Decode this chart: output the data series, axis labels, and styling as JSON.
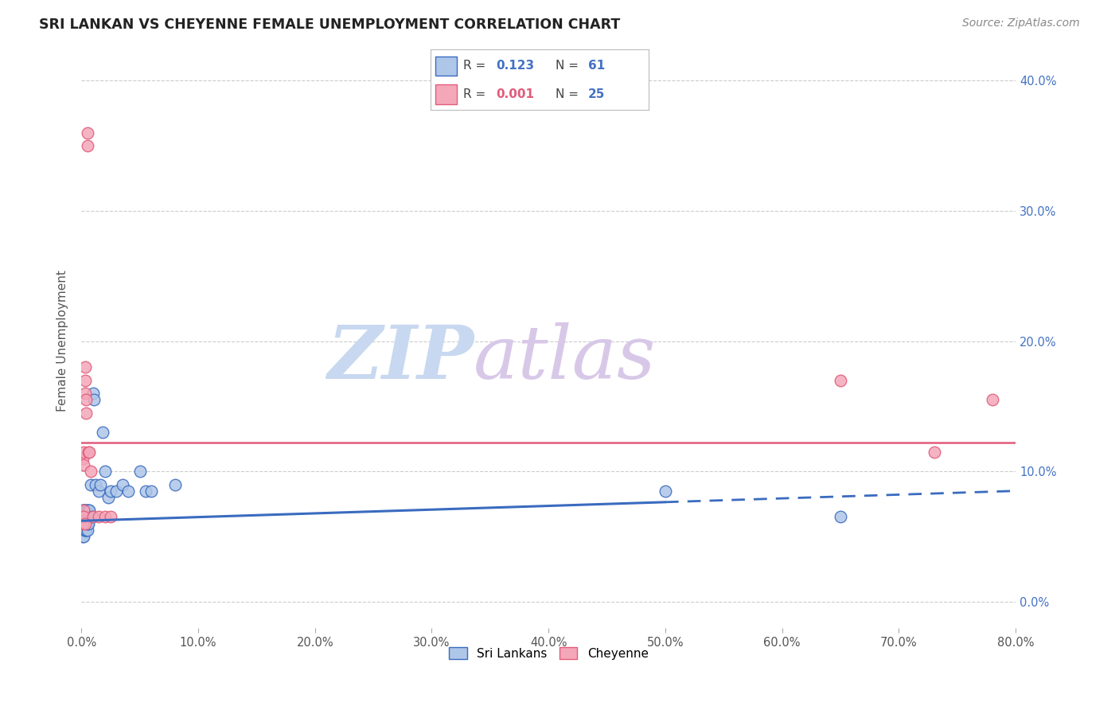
{
  "title": "SRI LANKAN VS CHEYENNE FEMALE UNEMPLOYMENT CORRELATION CHART",
  "source": "Source: ZipAtlas.com",
  "ylabel": "Female Unemployment",
  "xlim": [
    0.0,
    0.8
  ],
  "ylim": [
    -0.02,
    0.42
  ],
  "sri_lankan_R": 0.123,
  "sri_lankan_N": 61,
  "cheyenne_R": 0.001,
  "cheyenne_N": 25,
  "sri_lankan_color": "#aec6e8",
  "cheyenne_color": "#f4a7b9",
  "sri_lankan_line_color": "#3a6bbf",
  "cheyenne_line_color": "#e05c7a",
  "watermark_zip_color": "#c8d8f0",
  "watermark_atlas_color": "#d8c8e8",
  "background_color": "#ffffff",
  "sri_lankans_x": [
    0.001,
    0.001,
    0.001,
    0.001,
    0.001,
    0.001,
    0.002,
    0.002,
    0.002,
    0.002,
    0.002,
    0.002,
    0.002,
    0.002,
    0.002,
    0.003,
    0.003,
    0.003,
    0.003,
    0.003,
    0.003,
    0.003,
    0.003,
    0.003,
    0.003,
    0.004,
    0.004,
    0.004,
    0.004,
    0.004,
    0.004,
    0.005,
    0.005,
    0.005,
    0.005,
    0.005,
    0.006,
    0.006,
    0.006,
    0.007,
    0.007,
    0.008,
    0.009,
    0.01,
    0.011,
    0.012,
    0.015,
    0.016,
    0.018,
    0.02,
    0.023,
    0.025,
    0.03,
    0.035,
    0.04,
    0.05,
    0.055,
    0.06,
    0.08,
    0.5,
    0.65
  ],
  "sri_lankans_y": [
    0.06,
    0.06,
    0.065,
    0.07,
    0.05,
    0.055,
    0.06,
    0.065,
    0.07,
    0.055,
    0.05,
    0.06,
    0.07,
    0.065,
    0.06,
    0.06,
    0.065,
    0.07,
    0.055,
    0.06,
    0.065,
    0.07,
    0.06,
    0.055,
    0.065,
    0.06,
    0.065,
    0.055,
    0.07,
    0.065,
    0.06,
    0.06,
    0.07,
    0.065,
    0.055,
    0.06,
    0.07,
    0.065,
    0.06,
    0.065,
    0.07,
    0.09,
    0.065,
    0.16,
    0.155,
    0.09,
    0.085,
    0.09,
    0.13,
    0.1,
    0.08,
    0.085,
    0.085,
    0.09,
    0.085,
    0.1,
    0.085,
    0.085,
    0.09,
    0.085,
    0.065
  ],
  "cheyenne_x": [
    0.001,
    0.001,
    0.001,
    0.002,
    0.002,
    0.002,
    0.002,
    0.003,
    0.003,
    0.003,
    0.003,
    0.004,
    0.004,
    0.005,
    0.005,
    0.006,
    0.007,
    0.008,
    0.01,
    0.015,
    0.02,
    0.025,
    0.65,
    0.73,
    0.78
  ],
  "cheyenne_y": [
    0.065,
    0.06,
    0.11,
    0.07,
    0.065,
    0.115,
    0.105,
    0.06,
    0.17,
    0.16,
    0.18,
    0.155,
    0.145,
    0.35,
    0.36,
    0.115,
    0.115,
    0.1,
    0.065,
    0.065,
    0.065,
    0.065,
    0.17,
    0.115,
    0.155
  ],
  "sl_trend_x0": 0.0,
  "sl_trend_x_solid_end": 0.5,
  "sl_trend_x1": 0.8,
  "sl_trend_y0": 0.062,
  "sl_trend_y1": 0.085,
  "ch_trend_y": 0.122,
  "grid_color": "#cccccc",
  "tick_color": "#aaaaaa",
  "label_color": "#555555",
  "right_axis_color": "#4472c4"
}
